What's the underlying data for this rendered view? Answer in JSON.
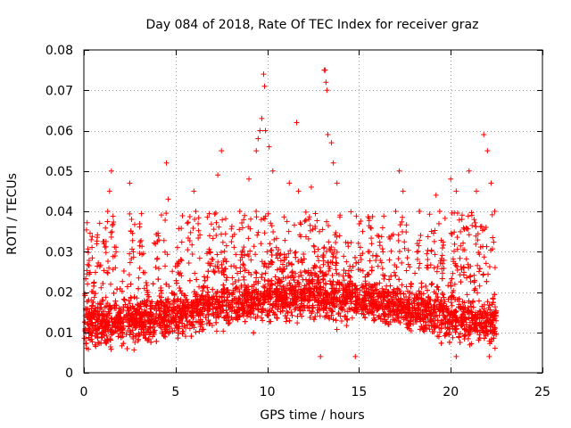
{
  "chart_data": {
    "type": "scatter",
    "title": "Day 084 of 2018, Rate Of TEC Index for receiver graz",
    "xlabel": "GPS time / hours",
    "ylabel": "ROTI / TECUs",
    "xlim": [
      0,
      25
    ],
    "ylim": [
      0,
      0.08
    ],
    "x_ticks": [
      0,
      5,
      10,
      15,
      20,
      25
    ],
    "x_tick_labels": [
      "0",
      "5",
      "10",
      "15",
      "20",
      "25"
    ],
    "y_ticks": [
      0,
      0.01,
      0.02,
      0.03,
      0.04,
      0.05,
      0.06,
      0.07,
      0.08
    ],
    "y_tick_labels": [
      "0",
      "0.01",
      "0.02",
      "0.03",
      "0.04",
      "0.05",
      "0.06",
      "0.07",
      "0.08"
    ],
    "grid": true,
    "marker": "+",
    "color": "#ff0000",
    "data_range_hours": [
      0,
      22.5
    ],
    "series": [
      {
        "name": "ROTI",
        "description_points": "dense cloud mostly between 0.005 and 0.03",
        "points": [
          [
            0.2,
            0.022
          ],
          [
            0.4,
            0.018
          ],
          [
            1.1,
            0.032
          ],
          [
            1.3,
            0.04
          ],
          [
            1.4,
            0.045
          ],
          [
            1.5,
            0.05
          ],
          [
            2.5,
            0.047
          ],
          [
            2.6,
            0.038
          ],
          [
            4.5,
            0.052
          ],
          [
            4.6,
            0.043
          ],
          [
            6.0,
            0.045
          ],
          [
            6.1,
            0.04
          ],
          [
            7.3,
            0.049
          ],
          [
            7.5,
            0.055
          ],
          [
            8.5,
            0.04
          ],
          [
            9.0,
            0.048
          ],
          [
            9.4,
            0.055
          ],
          [
            9.5,
            0.058
          ],
          [
            9.6,
            0.06
          ],
          [
            9.7,
            0.063
          ],
          [
            9.8,
            0.074
          ],
          [
            9.85,
            0.071
          ],
          [
            9.9,
            0.06
          ],
          [
            10.1,
            0.056
          ],
          [
            10.3,
            0.05
          ],
          [
            11.2,
            0.047
          ],
          [
            11.6,
            0.062
          ],
          [
            11.7,
            0.045
          ],
          [
            12.4,
            0.046
          ],
          [
            13.1,
            0.075
          ],
          [
            13.15,
            0.075
          ],
          [
            13.2,
            0.072
          ],
          [
            13.25,
            0.07
          ],
          [
            13.3,
            0.059
          ],
          [
            13.5,
            0.057
          ],
          [
            13.6,
            0.052
          ],
          [
            13.8,
            0.047
          ],
          [
            15.2,
            0.035
          ],
          [
            15.5,
            0.03
          ],
          [
            16.0,
            0.034
          ],
          [
            17.0,
            0.04
          ],
          [
            17.2,
            0.05
          ],
          [
            17.4,
            0.045
          ],
          [
            18.3,
            0.04
          ],
          [
            19.2,
            0.044
          ],
          [
            19.4,
            0.04
          ],
          [
            20.0,
            0.048
          ],
          [
            20.3,
            0.045
          ],
          [
            21.0,
            0.05
          ],
          [
            21.4,
            0.045
          ],
          [
            21.8,
            0.059
          ],
          [
            22.0,
            0.055
          ],
          [
            22.2,
            0.047
          ],
          [
            22.4,
            0.04
          ],
          [
            12.9,
            0.004
          ],
          [
            14.8,
            0.004
          ],
          [
            20.3,
            0.004
          ],
          [
            22.1,
            0.004
          ]
        ]
      }
    ]
  }
}
